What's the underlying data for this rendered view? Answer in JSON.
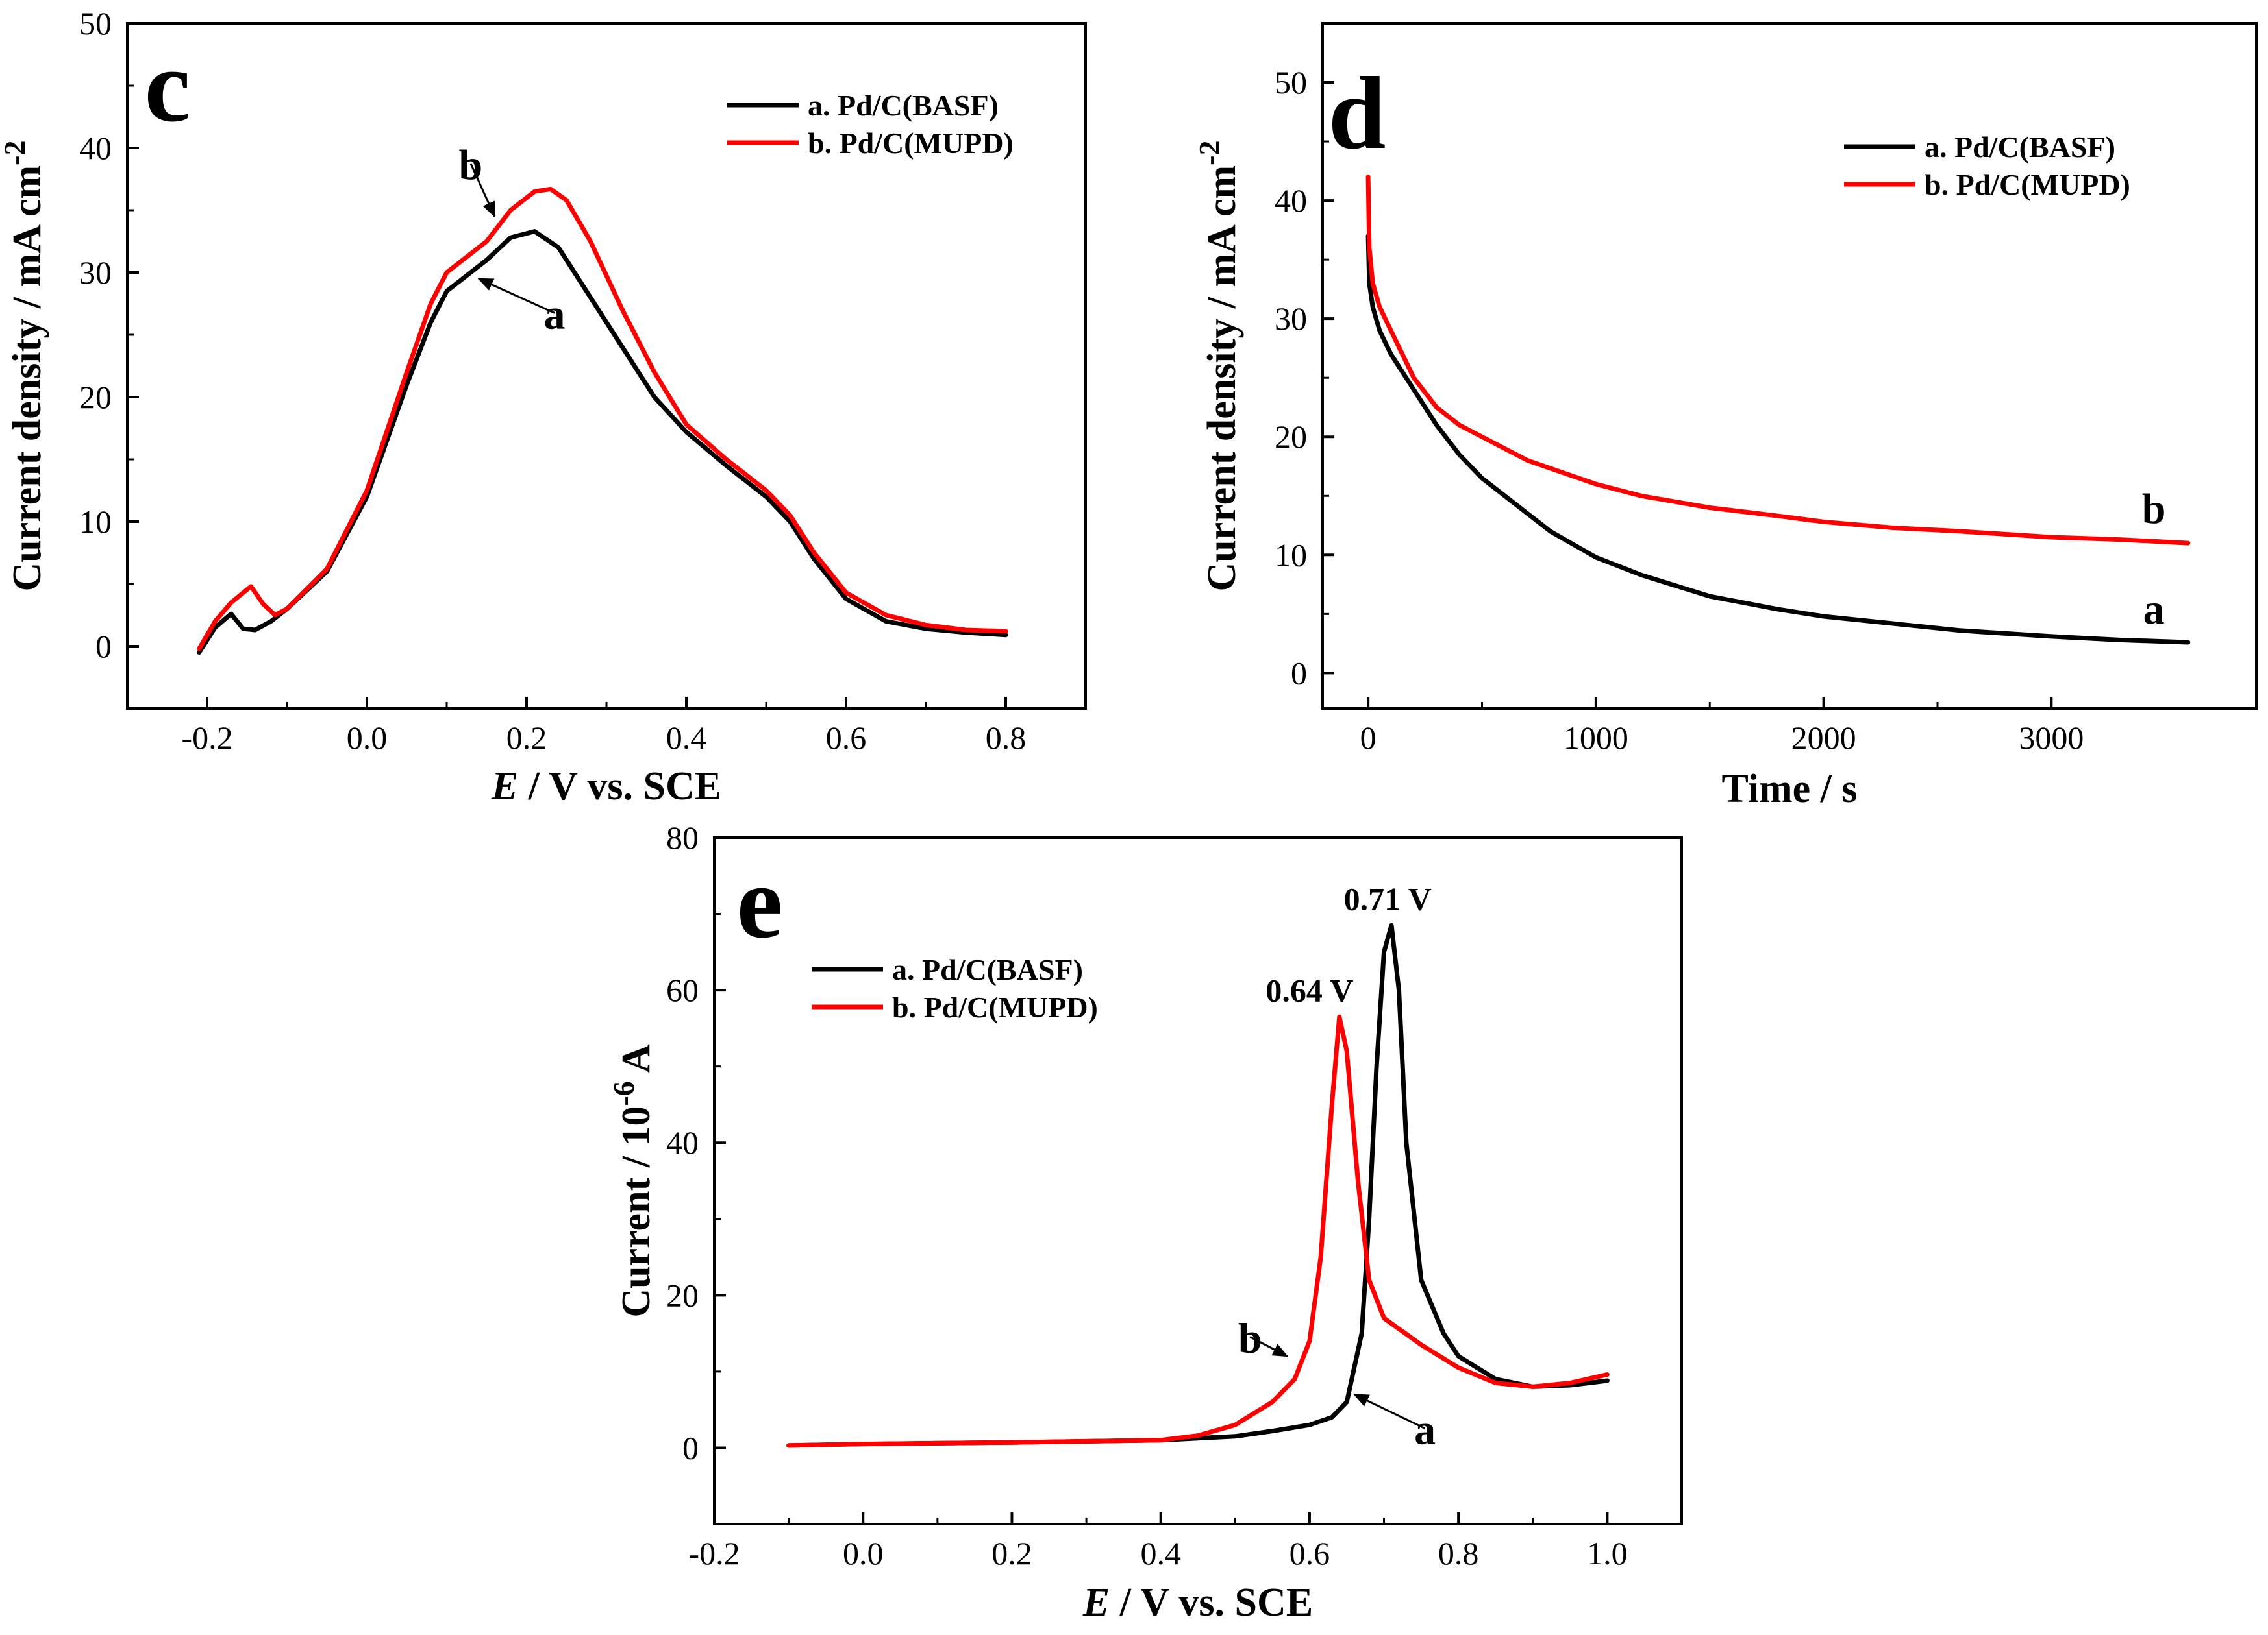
{
  "colors": {
    "series_a": "#000000",
    "series_b": "#ff0000",
    "axis": "#000000"
  },
  "chart_data": [
    {
      "id": "c",
      "type": "line",
      "panel_label": "c",
      "xlabel_italic": "E",
      "xlabel_rest": " / V vs. SCE",
      "ylabel": "Current density / mA cm",
      "ylabel_sup": "-2",
      "xlim": [
        -0.3,
        0.9
      ],
      "ylim": [
        -5,
        50
      ],
      "xticks": [
        -0.2,
        0.0,
        0.2,
        0.4,
        0.6,
        0.8
      ],
      "xtick_labels": [
        "-0.2",
        "0.0",
        "0.2",
        "0.4",
        "0.6",
        "0.8"
      ],
      "yticks": [
        0,
        10,
        20,
        30,
        40,
        50
      ],
      "ytick_labels": [
        "0",
        "10",
        "20",
        "30",
        "40",
        "50"
      ],
      "legend": [
        "a. Pd/C(BASF)",
        "b. Pd/C(MUPD)"
      ],
      "curve_labels": [
        {
          "text": "b",
          "x": 0.13,
          "y": 37.5,
          "arrow_to": [
            0.16,
            34.5
          ]
        },
        {
          "text": "a",
          "x": 0.235,
          "y": 25.5,
          "arrow_to": [
            0.14,
            29.5
          ]
        }
      ],
      "series": [
        {
          "name": "a. Pd/C(BASF)",
          "x": [
            -0.21,
            -0.19,
            -0.17,
            -0.155,
            -0.14,
            -0.12,
            -0.1,
            -0.05,
            0.0,
            0.05,
            0.08,
            0.1,
            0.12,
            0.15,
            0.18,
            0.21,
            0.24,
            0.28,
            0.32,
            0.36,
            0.4,
            0.45,
            0.5,
            0.53,
            0.56,
            0.6,
            0.65,
            0.7,
            0.75,
            0.8
          ],
          "y": [
            -0.5,
            1.5,
            2.6,
            1.4,
            1.3,
            2.0,
            3.0,
            6.0,
            12.0,
            21.0,
            26.0,
            28.5,
            29.5,
            31.0,
            32.8,
            33.3,
            32.0,
            28.0,
            24.0,
            20.0,
            17.2,
            14.5,
            12.0,
            10.0,
            7.0,
            3.8,
            2.0,
            1.4,
            1.1,
            0.9
          ]
        },
        {
          "name": "b. Pd/C(MUPD)",
          "x": [
            -0.21,
            -0.19,
            -0.17,
            -0.145,
            -0.13,
            -0.115,
            -0.1,
            -0.05,
            0.0,
            0.05,
            0.08,
            0.1,
            0.12,
            0.15,
            0.18,
            0.21,
            0.23,
            0.25,
            0.28,
            0.32,
            0.36,
            0.4,
            0.45,
            0.5,
            0.53,
            0.56,
            0.6,
            0.65,
            0.7,
            0.75,
            0.8
          ],
          "y": [
            -0.2,
            2.0,
            3.5,
            4.8,
            3.4,
            2.5,
            3.0,
            6.2,
            12.5,
            22.0,
            27.5,
            30.0,
            31.0,
            32.5,
            35.0,
            36.5,
            36.7,
            35.8,
            32.5,
            27.0,
            22.0,
            17.8,
            15.0,
            12.5,
            10.5,
            7.5,
            4.3,
            2.5,
            1.7,
            1.3,
            1.2
          ]
        }
      ]
    },
    {
      "id": "d",
      "type": "line",
      "panel_label": "d",
      "xlabel_italic": "",
      "xlabel_rest": "Time / s",
      "ylabel": "Current density / mA cm",
      "ylabel_sup": "-2",
      "xlim": [
        -200,
        3900
      ],
      "ylim": [
        -3,
        55
      ],
      "xticks": [
        0,
        1000,
        2000,
        3000
      ],
      "xtick_labels": [
        "0",
        "1000",
        "2000",
        "3000"
      ],
      "yticks": [
        0,
        10,
        20,
        30,
        40,
        50
      ],
      "ytick_labels": [
        "0",
        "10",
        "20",
        "30",
        "40",
        "50"
      ],
      "legend": [
        "a. Pd/C(BASF)",
        "b. Pd/C(MUPD)"
      ],
      "curve_labels": [
        {
          "text": "b",
          "x": 3450,
          "y": 12.7
        },
        {
          "text": "a",
          "x": 3450,
          "y": 4.2
        }
      ],
      "series": [
        {
          "name": "a. Pd/C(BASF)",
          "x": [
            0,
            5,
            20,
            50,
            100,
            200,
            300,
            400,
            500,
            600,
            800,
            1000,
            1200,
            1500,
            1800,
            2000,
            2300,
            2600,
            3000,
            3300,
            3600
          ],
          "y": [
            37.0,
            33.0,
            31.0,
            29.0,
            27.0,
            24.0,
            21.0,
            18.5,
            16.5,
            15.0,
            12.0,
            9.8,
            8.3,
            6.5,
            5.4,
            4.8,
            4.2,
            3.6,
            3.1,
            2.8,
            2.6
          ]
        },
        {
          "name": "b. Pd/C(MUPD)",
          "x": [
            0,
            5,
            20,
            50,
            100,
            200,
            300,
            400,
            500,
            700,
            1000,
            1200,
            1500,
            1800,
            2000,
            2300,
            2600,
            3000,
            3300,
            3600
          ],
          "y": [
            42.0,
            36.0,
            33.0,
            31.0,
            29.0,
            25.0,
            22.5,
            21.0,
            20.0,
            18.0,
            16.0,
            15.0,
            14.0,
            13.3,
            12.8,
            12.3,
            12.0,
            11.5,
            11.3,
            11.0
          ]
        }
      ]
    },
    {
      "id": "e",
      "type": "line",
      "panel_label": "e",
      "xlabel_italic": "E",
      "xlabel_rest": " / V vs. SCE",
      "ylabel": "Current / 10",
      "ylabel_sup": "-6",
      "ylabel_after": " A",
      "xlim": [
        -0.2,
        1.1
      ],
      "ylim": [
        -10,
        80
      ],
      "xticks": [
        -0.2,
        0.0,
        0.2,
        0.4,
        0.6,
        0.8,
        1.0
      ],
      "xtick_labels": [
        "-0.2",
        "0.0",
        "0.2",
        "0.4",
        "0.6",
        "0.8",
        "1.0"
      ],
      "yticks": [
        0,
        20,
        40,
        60,
        80
      ],
      "ytick_labels": [
        "0",
        "20",
        "40",
        "60",
        "80"
      ],
      "legend": [
        "a. Pd/C(BASF)",
        "b. Pd/C(MUPD)"
      ],
      "curve_labels": [
        {
          "text": "b",
          "x": 0.52,
          "y": 12.5,
          "arrow_to": [
            0.57,
            12.0
          ]
        },
        {
          "text": "a",
          "x": 0.755,
          "y": 0.5,
          "arrow_to": [
            0.66,
            7.0
          ]
        }
      ],
      "peak_annotations": [
        {
          "text": "0.71 V",
          "x": 0.705,
          "y": 70.5
        },
        {
          "text": "0.64 V",
          "x": 0.6,
          "y": 58.5
        }
      ],
      "series": [
        {
          "name": "a. Pd/C(BASF)",
          "x": [
            -0.1,
            0.0,
            0.2,
            0.4,
            0.5,
            0.55,
            0.6,
            0.63,
            0.65,
            0.67,
            0.68,
            0.69,
            0.7,
            0.71,
            0.72,
            0.73,
            0.75,
            0.78,
            0.8,
            0.85,
            0.9,
            0.95,
            1.0
          ],
          "y": [
            0.3,
            0.5,
            0.7,
            1.0,
            1.5,
            2.2,
            3.0,
            4.0,
            6.0,
            15.0,
            30.0,
            50.0,
            65.0,
            68.5,
            60.0,
            40.0,
            22.0,
            15.0,
            12.0,
            9.0,
            8.0,
            8.2,
            8.8
          ]
        },
        {
          "name": "b. Pd/C(MUPD)",
          "x": [
            -0.1,
            0.0,
            0.2,
            0.4,
            0.45,
            0.5,
            0.55,
            0.58,
            0.6,
            0.615,
            0.63,
            0.64,
            0.65,
            0.665,
            0.68,
            0.7,
            0.75,
            0.8,
            0.85,
            0.9,
            0.95,
            1.0
          ],
          "y": [
            0.3,
            0.5,
            0.7,
            1.0,
            1.6,
            3.0,
            6.0,
            9.0,
            14.0,
            25.0,
            45.0,
            56.5,
            52.0,
            35.0,
            22.0,
            17.0,
            13.5,
            10.5,
            8.5,
            8.0,
            8.5,
            9.6
          ]
        }
      ]
    }
  ]
}
